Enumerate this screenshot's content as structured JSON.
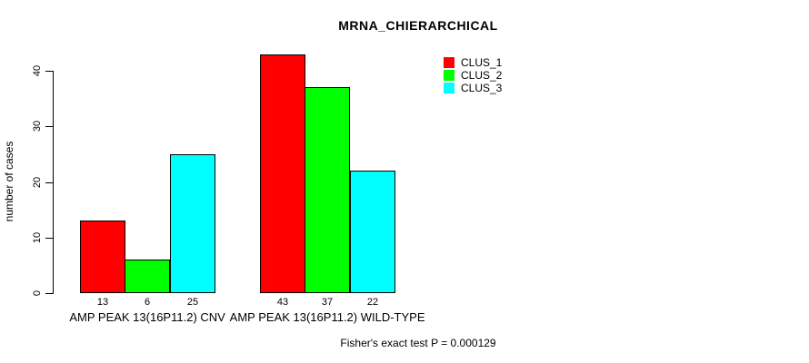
{
  "chart_data": {
    "type": "bar",
    "title": "MRNA_CHIERARCHICAL",
    "ylabel": "number of cases",
    "xlabel": "",
    "ylim": [
      0,
      40
    ],
    "yticks": [
      0,
      10,
      20,
      30,
      40
    ],
    "grid": false,
    "legend_position": "top-right",
    "bar_value_labels": true,
    "categories": [
      "AMP PEAK 13(16P11.2) CNV",
      "AMP PEAK 13(16P11.2) WILD-TYPE"
    ],
    "series": [
      {
        "name": "CLUS_1",
        "color": "#FF0000",
        "values": [
          13,
          43
        ]
      },
      {
        "name": "CLUS_2",
        "color": "#00FF00",
        "values": [
          6,
          37
        ]
      },
      {
        "name": "CLUS_3",
        "color": "#00FFFF",
        "values": [
          25,
          22
        ]
      }
    ],
    "annotation": "Fisher's exact test P = 0.000129"
  }
}
